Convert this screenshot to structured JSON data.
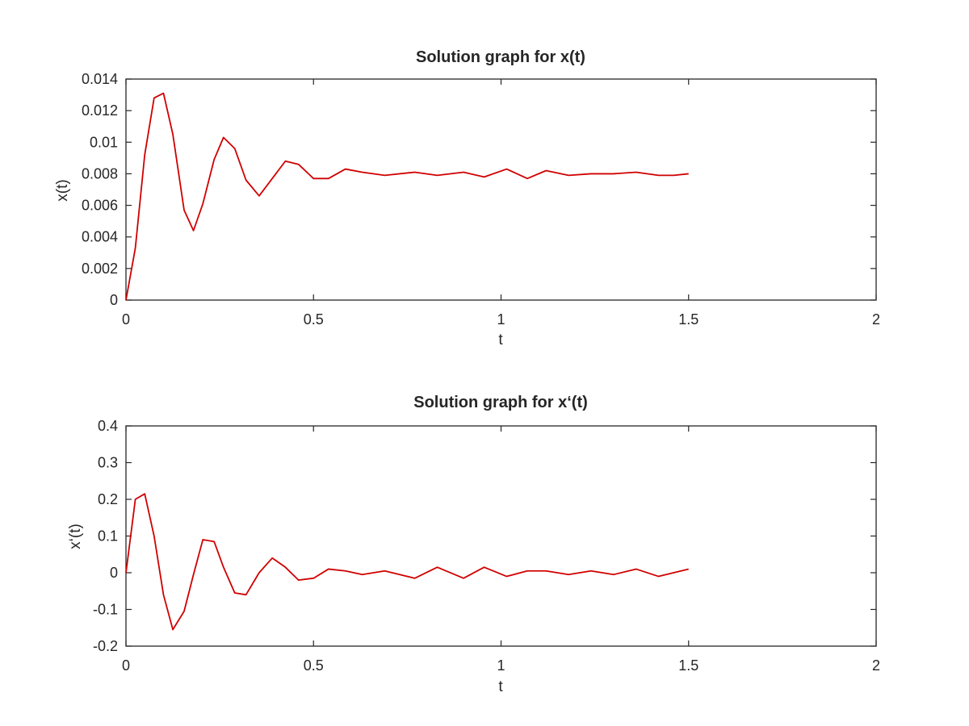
{
  "colors": {
    "line": "#d00000",
    "axes": "#262626",
    "background": "#ffffff"
  },
  "chart_data": [
    {
      "type": "line",
      "title": "Solution graph for x(t)",
      "xlabel": "t",
      "ylabel": "x(t)",
      "xlim": [
        0,
        2
      ],
      "ylim": [
        0,
        0.014
      ],
      "xticks": [
        "0",
        "0.5",
        "1",
        "1.5",
        "2"
      ],
      "yticks": [
        "0",
        "0.002",
        "0.004",
        "0.006",
        "0.008",
        "0.01",
        "0.012",
        "0.014"
      ],
      "grid": false,
      "series": [
        {
          "x": [
            0,
            0.025,
            0.05,
            0.075,
            0.1,
            0.125,
            0.155,
            0.18,
            0.205,
            0.235,
            0.26,
            0.29,
            0.32,
            0.355,
            0.39,
            0.425,
            0.46,
            0.5,
            0.54,
            0.585,
            0.63,
            0.69,
            0.77,
            0.83,
            0.9,
            0.955,
            1.015,
            1.07,
            1.12,
            1.18,
            1.24,
            1.3,
            1.36,
            1.42,
            1.46,
            1.5
          ],
          "y": [
            0,
            0.0033,
            0.0092,
            0.0128,
            0.0131,
            0.0105,
            0.0057,
            0.0044,
            0.0061,
            0.0089,
            0.0103,
            0.0096,
            0.0076,
            0.0066,
            0.0077,
            0.0088,
            0.0086,
            0.0077,
            0.0077,
            0.0083,
            0.0081,
            0.0079,
            0.0081,
            0.0079,
            0.0081,
            0.0078,
            0.0083,
            0.0077,
            0.0082,
            0.0079,
            0.008,
            0.008,
            0.0081,
            0.0079,
            0.0079,
            0.008
          ]
        }
      ]
    },
    {
      "type": "line",
      "title": "Solution graph for x‘(t)",
      "xlabel": "t",
      "ylabel": "x‘(t)",
      "xlim": [
        0,
        2
      ],
      "ylim": [
        -0.2,
        0.4
      ],
      "xticks": [
        "0",
        "0.5",
        "1",
        "1.5",
        "2"
      ],
      "yticks": [
        "-0.2",
        "-0.1",
        "0",
        "0.1",
        "0.2",
        "0.3",
        "0.4"
      ],
      "grid": false,
      "series": [
        {
          "x": [
            0,
            0.025,
            0.05,
            0.075,
            0.1,
            0.125,
            0.155,
            0.18,
            0.205,
            0.235,
            0.26,
            0.29,
            0.32,
            0.355,
            0.39,
            0.425,
            0.46,
            0.5,
            0.54,
            0.585,
            0.63,
            0.69,
            0.77,
            0.83,
            0.9,
            0.955,
            1.015,
            1.07,
            1.12,
            1.18,
            1.24,
            1.3,
            1.36,
            1.42,
            1.46,
            1.5
          ],
          "y": [
            0,
            0.2,
            0.215,
            0.1,
            -0.06,
            -0.155,
            -0.105,
            -0.005,
            0.09,
            0.085,
            0.015,
            -0.055,
            -0.06,
            0.0,
            0.04,
            0.015,
            -0.02,
            -0.015,
            0.01,
            0.005,
            -0.005,
            0.005,
            -0.015,
            0.015,
            -0.015,
            0.015,
            -0.01,
            0.005,
            0.005,
            -0.005,
            0.005,
            -0.005,
            0.01,
            -0.01,
            0.0,
            0.01
          ]
        }
      ]
    }
  ]
}
